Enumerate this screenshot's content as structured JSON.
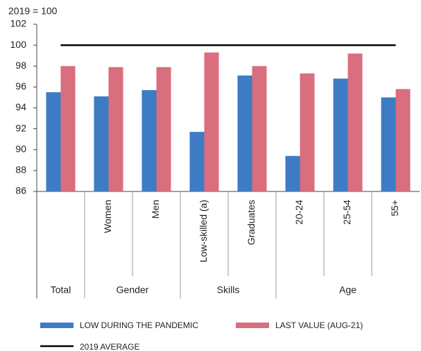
{
  "chart_data": {
    "type": "bar",
    "unit_label": "2019 = 100",
    "groups": [
      {
        "label": "Total",
        "categories": [
          null
        ]
      },
      {
        "label": "Gender",
        "categories": [
          "Women",
          "Men"
        ]
      },
      {
        "label": "Skills",
        "categories": [
          "Low-skilled (a)",
          "Graduates"
        ]
      },
      {
        "label": "Age",
        "categories": [
          "20-24",
          "25-54",
          "55+"
        ]
      }
    ],
    "series": [
      {
        "name": "LOW DURING THE PANDEMIC",
        "color": "#3d7cc4",
        "values": [
          95.5,
          95.1,
          95.7,
          91.7,
          97.1,
          89.4,
          96.8,
          95.0
        ]
      },
      {
        "name": "LAST VALUE (AUG-21)",
        "color": "#d86e7e",
        "values": [
          98.0,
          97.9,
          97.9,
          99.3,
          98.0,
          97.3,
          99.2,
          95.8
        ]
      }
    ],
    "reference_lines": [
      {
        "name": "2019 AVERAGE",
        "value": 100,
        "color": "#000000"
      }
    ],
    "ylim": [
      86,
      102
    ],
    "yticks": [
      86,
      88,
      90,
      92,
      94,
      96,
      98,
      100,
      102
    ]
  }
}
